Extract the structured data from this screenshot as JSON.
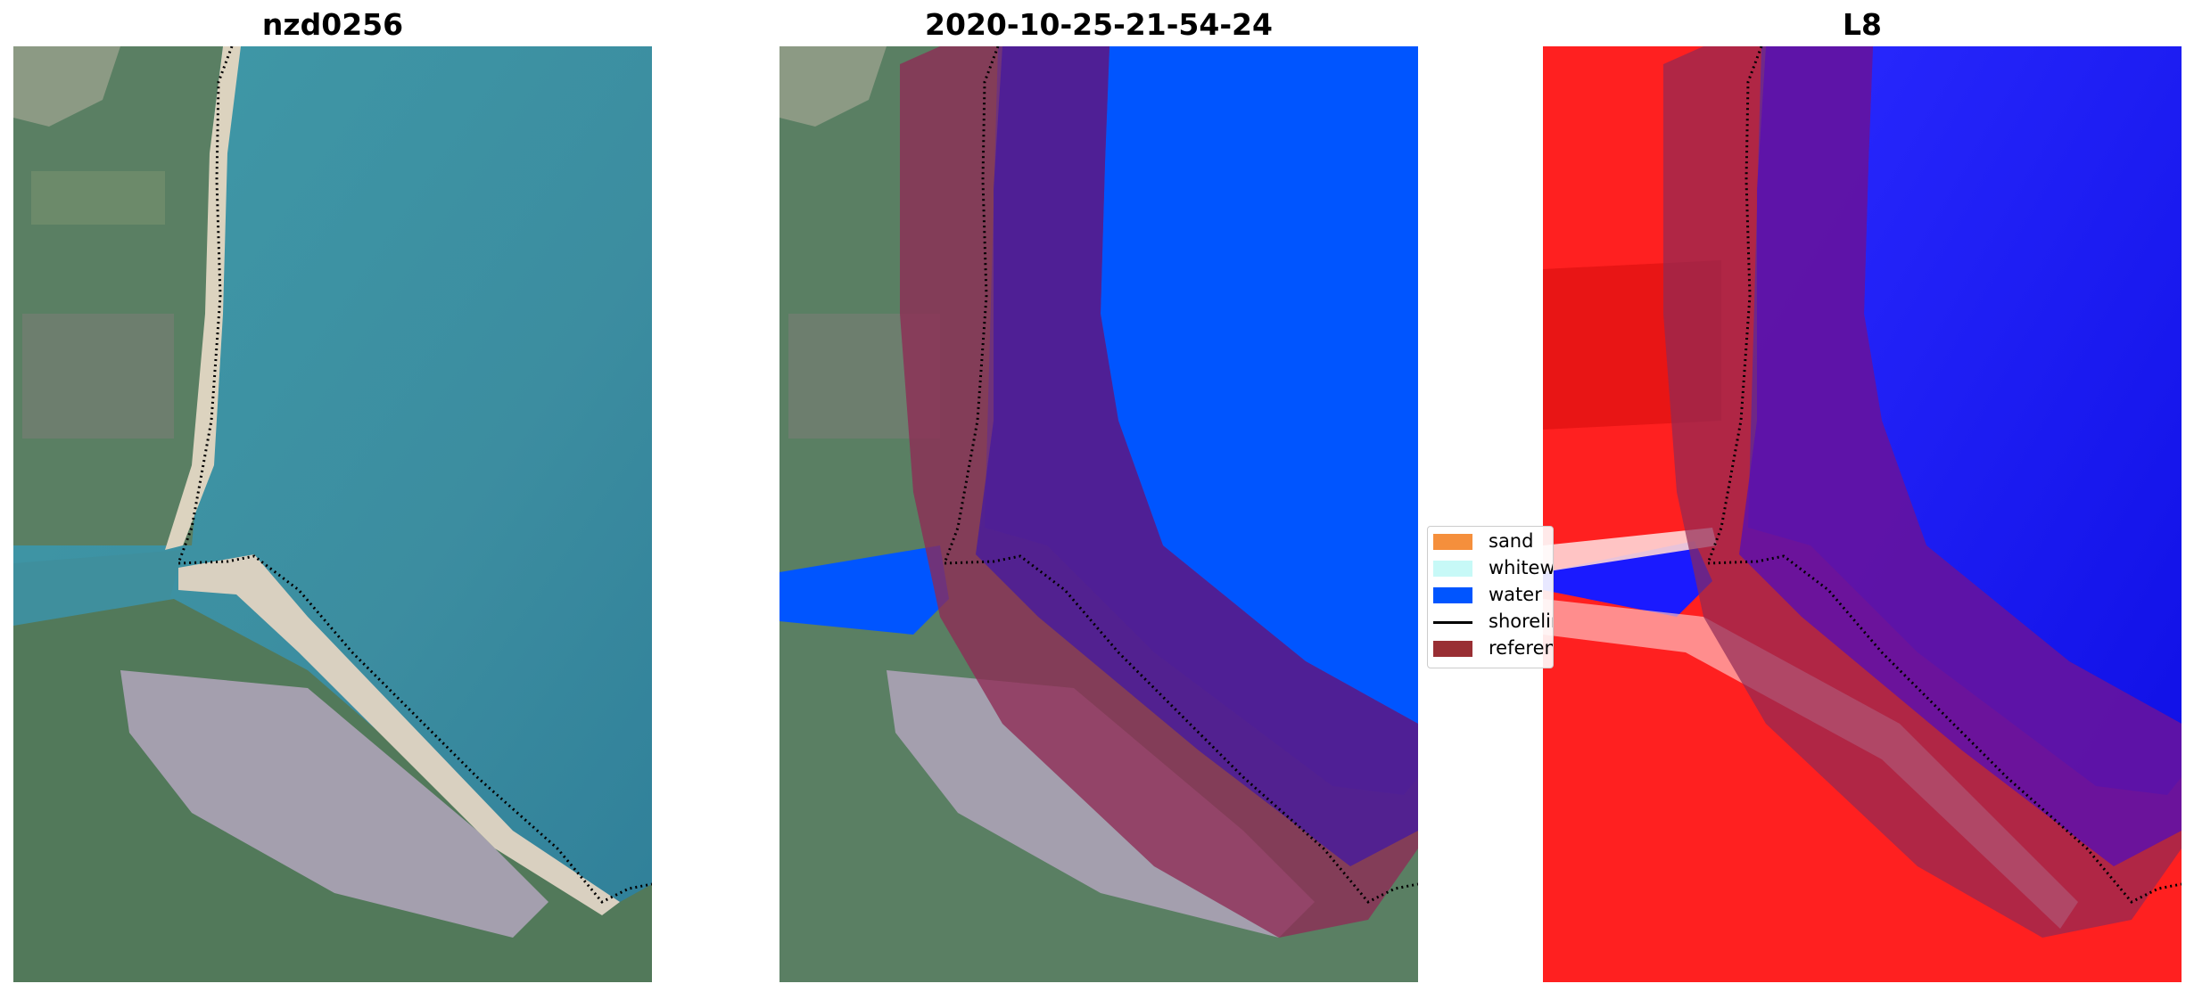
{
  "figure": {
    "panels": [
      {
        "title": "nzd0256"
      },
      {
        "title": "2020-10-25-21-54-24"
      },
      {
        "title": "L8"
      }
    ],
    "legend": {
      "items": [
        {
          "label": "sand",
          "color": "#f58f3c",
          "kind": "patch"
        },
        {
          "label": "whitewater",
          "color": "#c7f9f7",
          "kind": "patch"
        },
        {
          "label": "water",
          "color": "#0055ff",
          "kind": "patch"
        },
        {
          "label": "shoreline",
          "color": "#000000",
          "kind": "line"
        },
        {
          "label": "reference",
          "color": "#992f34",
          "kind": "patch"
        }
      ]
    },
    "colors": {
      "sea": "#3c8da0",
      "land_green": "#4f7a5a",
      "beach": "#d8d0bf",
      "tidal_flat": "#a49fae",
      "water_class": "#0055ff",
      "reference_overlay": "#8e2a55",
      "l8_red": "#ff1a1a",
      "l8_blue": "#1a1aff"
    }
  }
}
